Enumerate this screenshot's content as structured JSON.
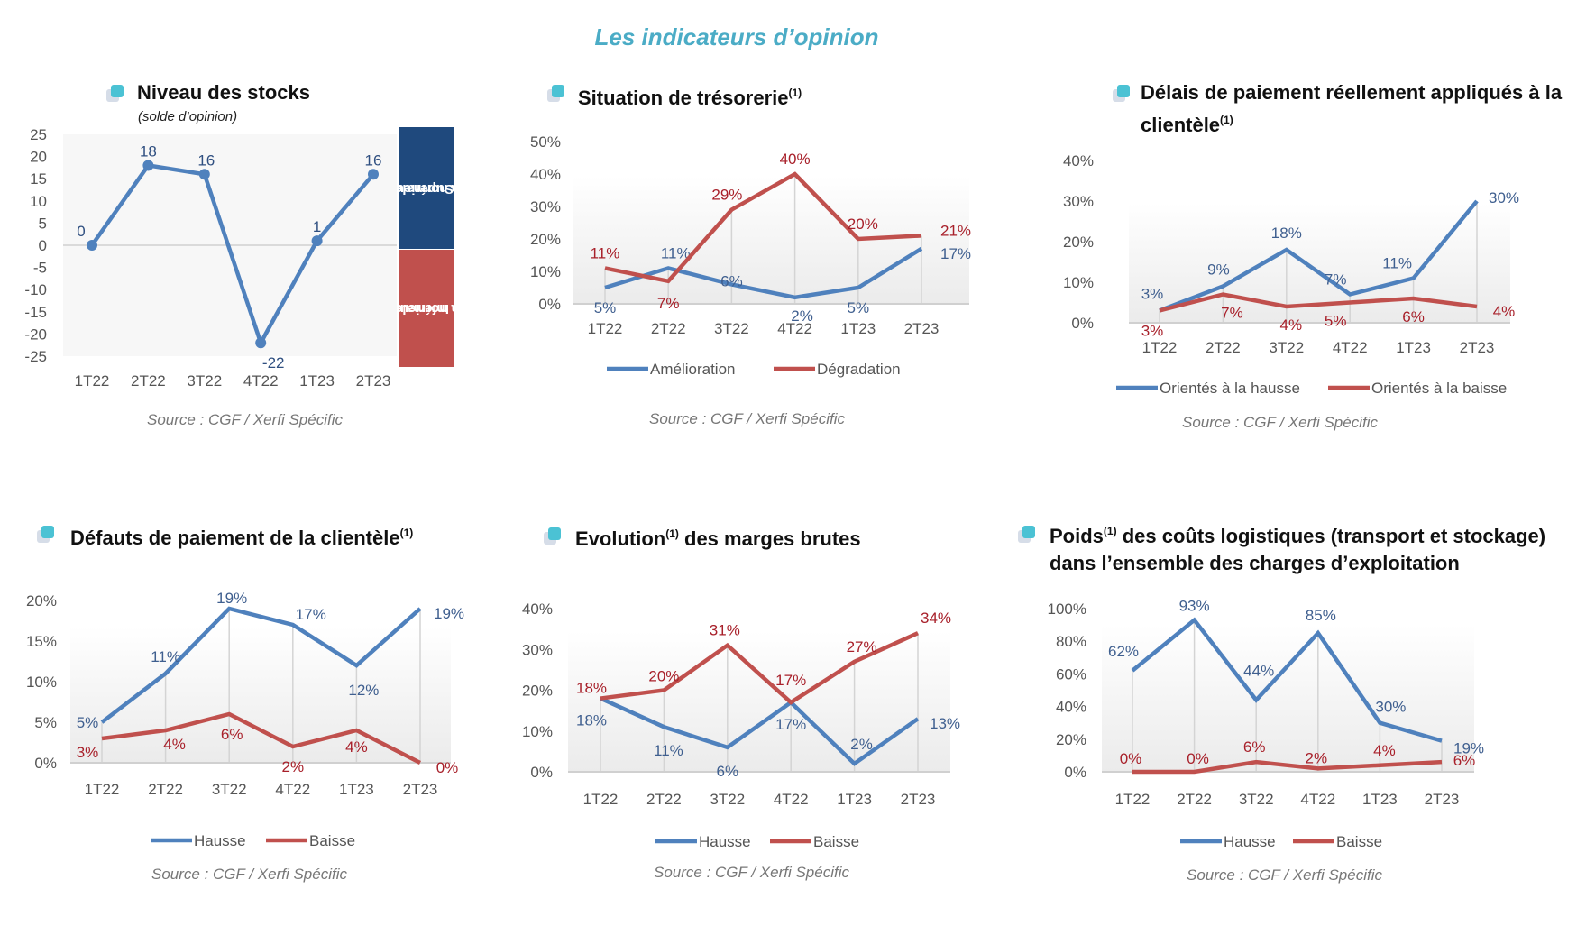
{
  "page_title": "Les indicateurs d’opinion",
  "source": "Source : CGF / Xerfi Spécific",
  "colors": {
    "blue": "#4f81bd",
    "red": "#c0504d",
    "blue_label": "#3f5f8f",
    "red_label": "#a8202a",
    "title_accent": "#4bacc6",
    "band_top": "#1f497d",
    "band_bottom": "#c0504d"
  },
  "panels": [
    {
      "title": "Niveau des stocks",
      "sup": "",
      "subtitle": "(solde d’opinion)",
      "band_top": "Supérieurs à la normale",
      "band_top_l1": "Supérieurs",
      "band_top_l2": "à la normale",
      "band_bottom_l1": "Inférieurs",
      "band_bottom_l2": "à la normale"
    },
    {
      "title": "Situation de trésorerie",
      "sup": "(1)"
    },
    {
      "title_l1": "Délais de paiement réellement appliqués à la",
      "title_l2": "clientèle",
      "sup": "(1)"
    },
    {
      "title": "Défauts de paiement de la clientèle",
      "sup": "(1)"
    },
    {
      "title_a": "Evolution",
      "sup": "(1)",
      "title_b": " des marges brutes"
    },
    {
      "title_a": "Poids",
      "sup": "(1)",
      "title_b": " des coûts logistiques (transport et stockage)",
      "title_l2": "dans l’ensemble des charges d’exploitation"
    }
  ],
  "chart_data": [
    {
      "type": "line",
      "title": "Niveau des stocks",
      "subtitle": "(solde d’opinion)",
      "categories": [
        "1T22",
        "2T22",
        "3T22",
        "4T22",
        "1T23",
        "2T23"
      ],
      "series": [
        {
          "name": "Solde d’opinion",
          "values": [
            0,
            18,
            16,
            -22,
            1,
            16
          ],
          "labels": [
            "0",
            "18",
            "16",
            "-22",
            "1",
            "16"
          ],
          "color": "#4f81bd",
          "markers": true
        }
      ],
      "yticks": [
        "25",
        "20",
        "15",
        "10",
        "5",
        "0",
        "-5",
        "-10",
        "-15",
        "-20",
        "-25"
      ],
      "ylim": [
        -25,
        25
      ],
      "legend": "none",
      "annotations": [
        "Supérieurs à la normale",
        "Inférieurs à la normale"
      ]
    },
    {
      "type": "line",
      "title": "Situation de trésorerie(1)",
      "categories": [
        "1T22",
        "2T22",
        "3T22",
        "4T22",
        "1T23",
        "2T23"
      ],
      "series": [
        {
          "name": "Amélioration",
          "values": [
            5,
            11,
            6,
            2,
            5,
            17
          ],
          "color": "#4f81bd"
        },
        {
          "name": "Dégradation",
          "values": [
            11,
            7,
            29,
            40,
            20,
            21
          ],
          "color": "#c0504d"
        }
      ],
      "yticks": [
        "50%",
        "40%",
        "30%",
        "20%",
        "10%",
        "0%"
      ],
      "ylim": [
        0,
        50
      ],
      "legend": "bottom"
    },
    {
      "type": "line",
      "title": "Délais de paiement réellement appliqués à la clientèle(1)",
      "categories": [
        "1T22",
        "2T22",
        "3T22",
        "4T22",
        "1T23",
        "2T23"
      ],
      "series": [
        {
          "name": "Orientés à la hausse",
          "values": [
            3,
            9,
            18,
            7,
            11,
            30
          ],
          "color": "#4f81bd"
        },
        {
          "name": "Orientés à la baisse",
          "values": [
            3,
            7,
            4,
            5,
            6,
            4
          ],
          "color": "#c0504d"
        }
      ],
      "yticks": [
        "40%",
        "30%",
        "20%",
        "10%",
        "0%"
      ],
      "ylim": [
        0,
        40
      ],
      "legend": "bottom"
    },
    {
      "type": "line",
      "title": "Défauts de paiement de la clientèle(1)",
      "categories": [
        "1T22",
        "2T22",
        "3T22",
        "4T22",
        "1T23",
        "2T23"
      ],
      "series": [
        {
          "name": "Hausse",
          "values": [
            5,
            11,
            19,
            17,
            12,
            19
          ],
          "color": "#4f81bd"
        },
        {
          "name": "Baisse",
          "values": [
            3,
            4,
            6,
            2,
            4,
            0
          ],
          "color": "#c0504d"
        }
      ],
      "yticks": [
        "20%",
        "15%",
        "10%",
        "5%",
        "0%"
      ],
      "ylim": [
        0,
        20
      ],
      "legend": "bottom"
    },
    {
      "type": "line",
      "title": "Evolution(1) des marges brutes",
      "categories": [
        "1T22",
        "2T22",
        "3T22",
        "4T22",
        "1T23",
        "2T23"
      ],
      "series": [
        {
          "name": "Hausse",
          "values": [
            18,
            11,
            6,
            17,
            2,
            13
          ],
          "color": "#4f81bd"
        },
        {
          "name": "Baisse",
          "values": [
            18,
            20,
            31,
            17,
            27,
            34
          ],
          "color": "#c0504d"
        }
      ],
      "yticks": [
        "40%",
        "30%",
        "20%",
        "10%",
        "0%"
      ],
      "ylim": [
        0,
        40
      ],
      "legend": "bottom"
    },
    {
      "type": "line",
      "title": "Poids(1) des coûts logistiques (transport et stockage) dans l’ensemble des charges d’exploitation",
      "categories": [
        "1T22",
        "2T22",
        "3T22",
        "4T22",
        "1T23",
        "2T23"
      ],
      "series": [
        {
          "name": "Hausse",
          "values": [
            62,
            93,
            44,
            85,
            30,
            19
          ],
          "color": "#4f81bd"
        },
        {
          "name": "Baisse",
          "values": [
            0,
            0,
            6,
            2,
            4,
            6
          ],
          "color": "#c0504d"
        }
      ],
      "yticks": [
        "100%",
        "80%",
        "60%",
        "40%",
        "20%",
        "0%"
      ],
      "ylim": [
        0,
        100
      ],
      "legend": "bottom"
    }
  ]
}
